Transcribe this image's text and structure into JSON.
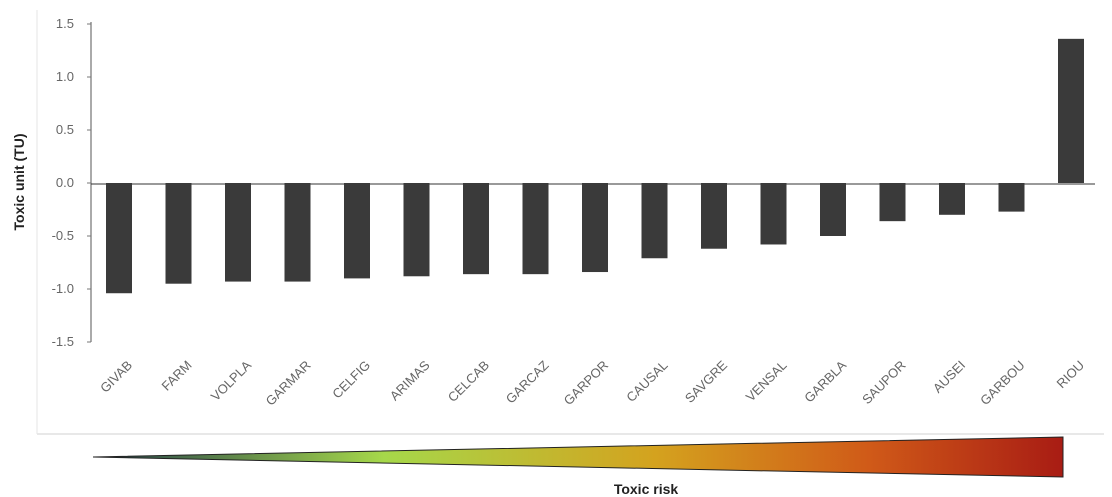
{
  "chart_data": {
    "type": "bar",
    "title": "",
    "xlabel": "",
    "ylabel": "Toxic unit (TU)",
    "ylim": [
      -1.5,
      1.5
    ],
    "yticks": [
      1.5,
      1.0,
      0.5,
      0.0,
      -0.5,
      -1.0,
      -1.5
    ],
    "ytick_labels": [
      "1.5",
      "1.0",
      "0.5",
      "0.0",
      "-0.5",
      "-1.0",
      "-1.5"
    ],
    "categories": [
      "GIVAB",
      "FARM",
      "VOLPLA",
      "GARMAR",
      "CELFIG",
      "ARIMAS",
      "CELCAB",
      "GARCAZ",
      "GARPOR",
      "CAUSAL",
      "SAVGRE",
      "VENSAL",
      "GARBLA",
      "SAUPOR",
      "AUSEI",
      "GARBOU",
      "RIOU"
    ],
    "values": [
      -1.04,
      -0.95,
      -0.93,
      -0.93,
      -0.9,
      -0.88,
      -0.86,
      -0.86,
      -0.84,
      -0.71,
      -0.62,
      -0.58,
      -0.5,
      -0.36,
      -0.3,
      -0.27,
      1.36
    ],
    "bar_color": "#3a3a3a",
    "grid": false,
    "legend": "none",
    "risk_scale": {
      "label": "Toxic risk",
      "colors": [
        "#1f3d4a",
        "#a6d84a",
        "#d4a21e",
        "#d05a18",
        "#a81c14"
      ]
    }
  }
}
